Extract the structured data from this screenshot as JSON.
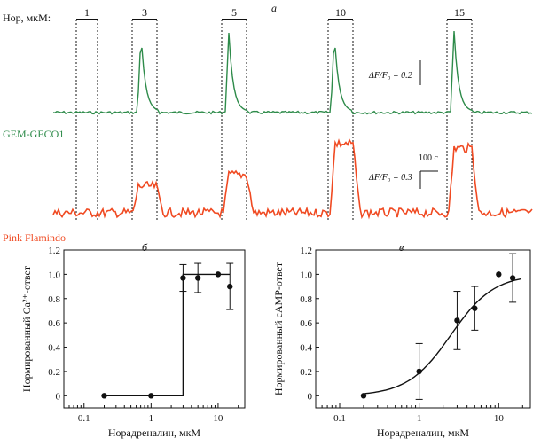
{
  "figure": {
    "panel_a_label": "а",
    "panel_b_label": "б",
    "panel_c_label": "в",
    "nor_label": "Нор, мкМ:",
    "green_label": "GEM-GECO1",
    "red_label": "Pink Flamindo",
    "scale_green": "ΔF/F₀ = 0.2",
    "scale_red": "ΔF/F₀ = 0.3",
    "scale_time": "100 с"
  },
  "chart_data": [
    {
      "type": "line",
      "panel": "а",
      "stimuli": [
        {
          "label": "1"
        },
        {
          "label": "3"
        },
        {
          "label": "5"
        },
        {
          "label": "10"
        },
        {
          "label": "15"
        }
      ],
      "series": [
        {
          "name": "GEM-GECO1",
          "color": "#2e8b4a"
        },
        {
          "name": "Pink Flamindo",
          "color": "#f04a22"
        }
      ]
    },
    {
      "type": "line",
      "panel": "б",
      "xlabel": "Норадреналин, мкМ",
      "ylabel": "Нормированный Ca²⁺-ответ",
      "xscale": "log",
      "xlim": [
        0.05,
        25
      ],
      "ylim": [
        -0.1,
        1.2
      ],
      "xticks": [
        "0.1",
        "1",
        "10"
      ],
      "yticks": [
        "0",
        "0.2",
        "0.4",
        "0.6",
        "0.8",
        "1.0",
        "1.2"
      ],
      "points": [
        {
          "x": 0.2,
          "y": 0.0,
          "err": 0
        },
        {
          "x": 1,
          "y": 0.0,
          "err": 0
        },
        {
          "x": 3,
          "y": 0.97,
          "err": 0.11
        },
        {
          "x": 5,
          "y": 0.97,
          "err": 0.12
        },
        {
          "x": 10,
          "y": 1.0,
          "err": 0
        },
        {
          "x": 15,
          "y": 0.9,
          "err": 0.19
        }
      ],
      "fit": "step at x=3 from 0 to 1.0"
    },
    {
      "type": "scatter",
      "panel": "в",
      "xlabel": "Норадреналин, мкМ",
      "ylabel": "Нормированный cAMP-ответ",
      "xscale": "log",
      "xlim": [
        0.05,
        25
      ],
      "ylim": [
        -0.1,
        1.2
      ],
      "xticks": [
        "0.1",
        "1",
        "10"
      ],
      "yticks": [
        "0",
        "0.2",
        "0.4",
        "0.6",
        "0.8",
        "1.0",
        "1.2"
      ],
      "points": [
        {
          "x": 0.2,
          "y": 0.0,
          "err": 0
        },
        {
          "x": 1,
          "y": 0.2,
          "err": 0.23
        },
        {
          "x": 3,
          "y": 0.62,
          "err": 0.24
        },
        {
          "x": 5,
          "y": 0.72,
          "err": 0.18
        },
        {
          "x": 10,
          "y": 1.0,
          "err": 0
        },
        {
          "x": 15,
          "y": 0.97,
          "err": 0.2
        }
      ],
      "fit": "sigmoid, EC50 ≈ 2.5 μM"
    }
  ],
  "colors": {
    "green": "#2e8b4a",
    "red": "#f04a22",
    "ink": "#111111"
  }
}
